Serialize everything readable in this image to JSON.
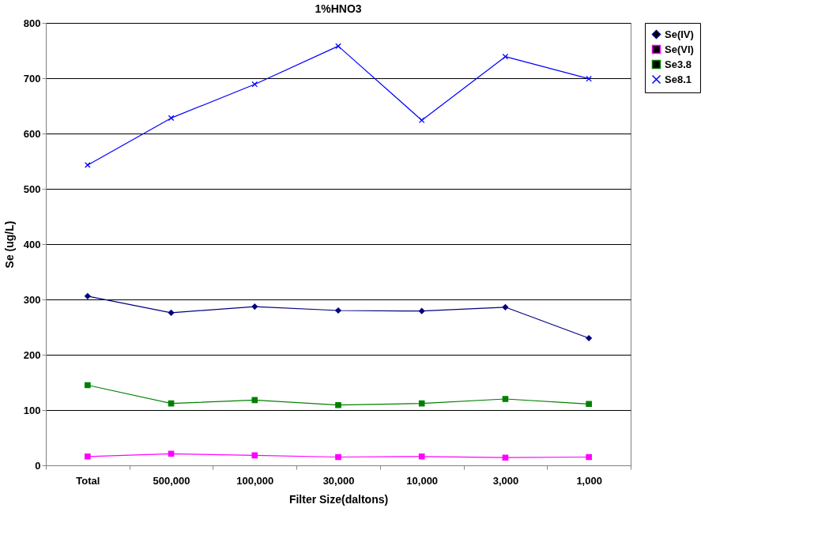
{
  "chart_data": {
    "type": "line",
    "title": "1%HNO3",
    "xlabel": "Filter Size(daltons)",
    "ylabel": "Se (ug/L)",
    "categories": [
      "Total",
      "500,000",
      "100,000",
      "30,000",
      "10,000",
      "3,000",
      "1,000"
    ],
    "series": [
      {
        "name": "Se(IV)",
        "color": "#000080",
        "marker": "diamond",
        "values": [
          306,
          276,
          287,
          280,
          279,
          286,
          230
        ]
      },
      {
        "name": "Se(VI)",
        "color": "#ff00ff",
        "marker": "square",
        "values": [
          16,
          21,
          18,
          15,
          16,
          14,
          15
        ]
      },
      {
        "name": "Se3.8",
        "color": "#008000",
        "marker": "square",
        "values": [
          145,
          112,
          118,
          109,
          112,
          120,
          111
        ]
      },
      {
        "name": "Se8.1",
        "color": "#0000ff",
        "marker": "cross",
        "values": [
          543,
          628,
          689,
          758,
          624,
          739,
          699
        ]
      }
    ],
    "ylim": [
      0,
      800
    ],
    "yticks": [
      0,
      100,
      200,
      300,
      400,
      500,
      600,
      700,
      800
    ],
    "grid": "y",
    "legend": "right"
  }
}
